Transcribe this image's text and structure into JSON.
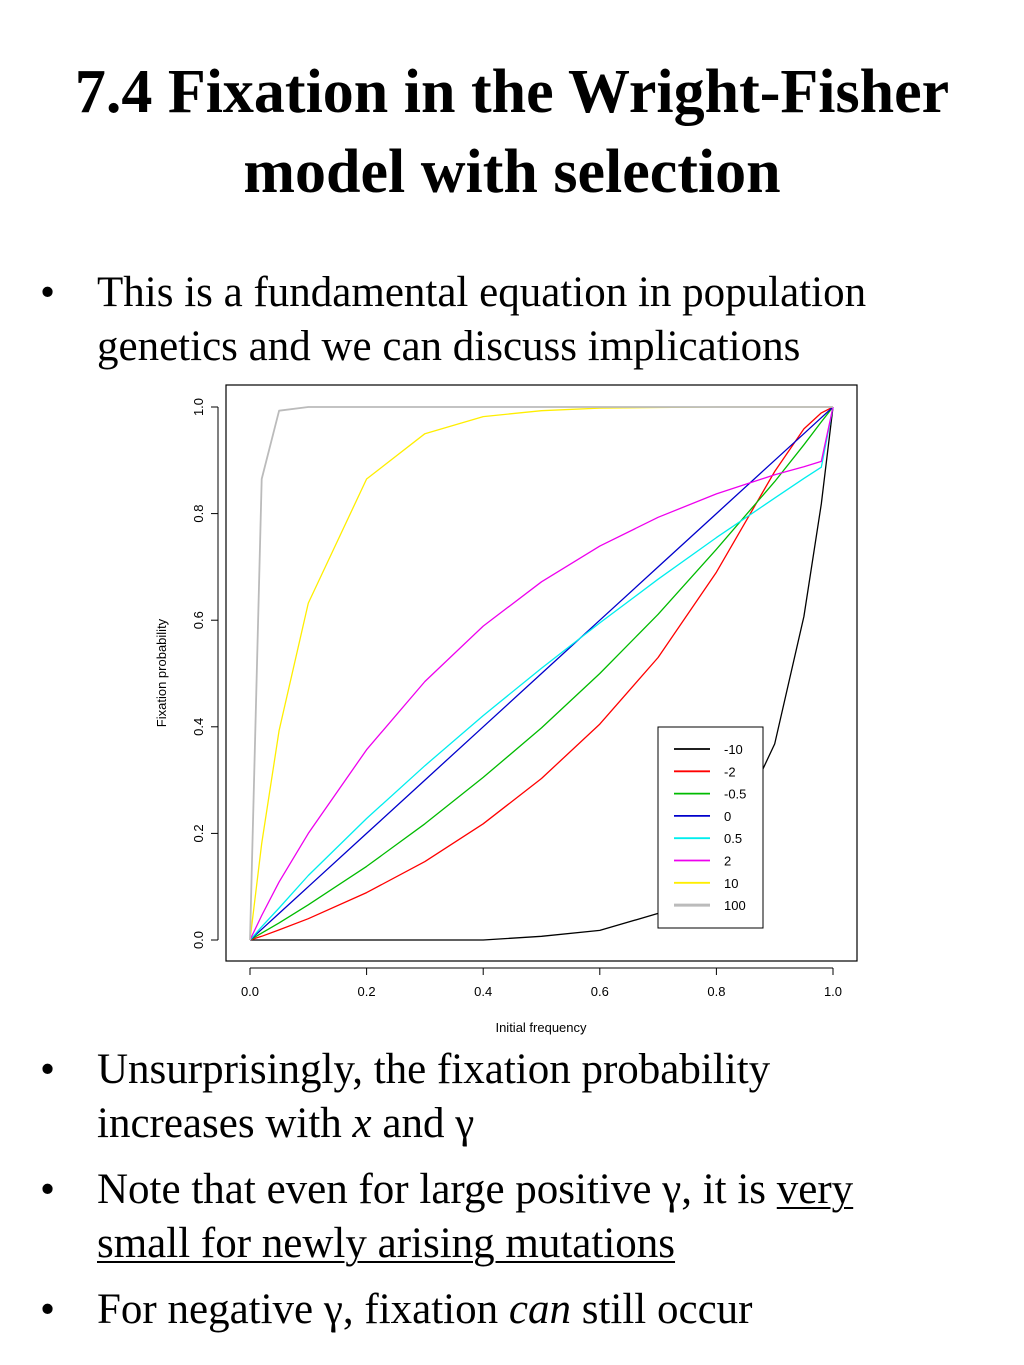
{
  "slide": {
    "title_line1": "7.4 Fixation in the Wright-Fisher",
    "title_line2": "model with selection",
    "bullet_symbol": "•",
    "bullet1_line1": "This is a fundamental equation in population",
    "bullet1_line2": "genetics and we can discuss implications",
    "bullet2_line1": "Unsurprisingly, the fixation probability",
    "bullet2_line2_a": "increases with ",
    "bullet2_line2_x": "x",
    "bullet2_line2_b": " and γ",
    "bullet3_line1_a": "Note that even for large positive γ, it is ",
    "bullet3_line1_u": "very",
    "bullet3_line2_u": "small for newly arising mutations",
    "bullet4_a": "For negative γ, fixation ",
    "bullet4_can": "can",
    "bullet4_b": " still occur"
  },
  "chart_data": {
    "type": "line",
    "xlabel": "Initial frequency",
    "ylabel": "Fixation probability",
    "xlim": [
      0,
      1
    ],
    "ylim": [
      0,
      1
    ],
    "xticks": [
      "0.0",
      "0.2",
      "0.4",
      "0.6",
      "0.8",
      "1.0"
    ],
    "yticks": [
      "0.0",
      "0.2",
      "0.4",
      "0.6",
      "0.8",
      "1.0"
    ],
    "grid": false,
    "legend_position": "bottom-right",
    "x": [
      0,
      0.02,
      0.05,
      0.1,
      0.2,
      0.3,
      0.4,
      0.5,
      0.6,
      0.7,
      0.8,
      0.9,
      0.95,
      0.98,
      1
    ],
    "series": [
      {
        "name": "-10",
        "color": "#000000",
        "values": [
          0,
          0.0,
          0.0,
          0.0,
          0.0,
          0.0,
          0.0,
          0.007,
          0.018,
          0.05,
          0.135,
          0.368,
          0.607,
          0.818,
          1
        ]
      },
      {
        "name": "-2",
        "color": "#ff0000",
        "values": [
          0,
          0.007,
          0.019,
          0.04,
          0.089,
          0.147,
          0.218,
          0.303,
          0.405,
          0.53,
          0.69,
          0.879,
          0.959,
          0.989,
          1
        ]
      },
      {
        "name": "-0.5",
        "color": "#00bb00",
        "values": [
          0,
          0.013,
          0.032,
          0.066,
          0.138,
          0.218,
          0.305,
          0.398,
          0.5,
          0.611,
          0.733,
          0.86,
          0.929,
          0.972,
          1
        ]
      },
      {
        "name": "0",
        "color": "#0000cc",
        "values": [
          0,
          0.02,
          0.05,
          0.1,
          0.2,
          0.3,
          0.4,
          0.5,
          0.6,
          0.7,
          0.8,
          0.9,
          0.95,
          0.98,
          1
        ]
      },
      {
        "name": "0.5",
        "color": "#00eeee",
        "values": [
          0,
          0.025,
          0.06,
          0.121,
          0.228,
          0.327,
          0.421,
          0.51,
          0.595,
          0.677,
          0.755,
          0.829,
          0.866,
          0.887,
          1
        ]
      },
      {
        "name": "2",
        "color": "#ee00ee",
        "values": [
          0,
          0.046,
          0.109,
          0.2,
          0.357,
          0.485,
          0.589,
          0.672,
          0.739,
          0.793,
          0.837,
          0.873,
          0.888,
          0.898,
          1
        ]
      },
      {
        "name": "10",
        "color": "#ffee00",
        "values": [
          0,
          0.181,
          0.393,
          0.632,
          0.865,
          0.95,
          0.982,
          0.993,
          0.998,
          0.999,
          1,
          1,
          1,
          1,
          1
        ]
      },
      {
        "name": "100",
        "color": "#bbbbbb",
        "values": [
          0,
          0.865,
          0.993,
          1,
          1,
          1,
          1,
          1,
          1,
          1,
          1,
          1,
          1,
          1,
          1
        ]
      }
    ]
  }
}
